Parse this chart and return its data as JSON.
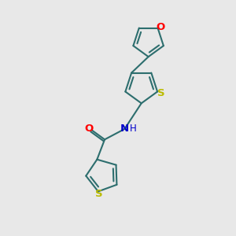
{
  "bg": "#e8e8e8",
  "bc": "#2d6e6e",
  "bw": 1.5,
  "atom_colors": {
    "S": "#bbbb00",
    "O": "#ff0000",
    "N": "#0000cc"
  },
  "afs": 9.5,
  "xlim": [
    0,
    10
  ],
  "ylim": [
    0,
    10
  ]
}
